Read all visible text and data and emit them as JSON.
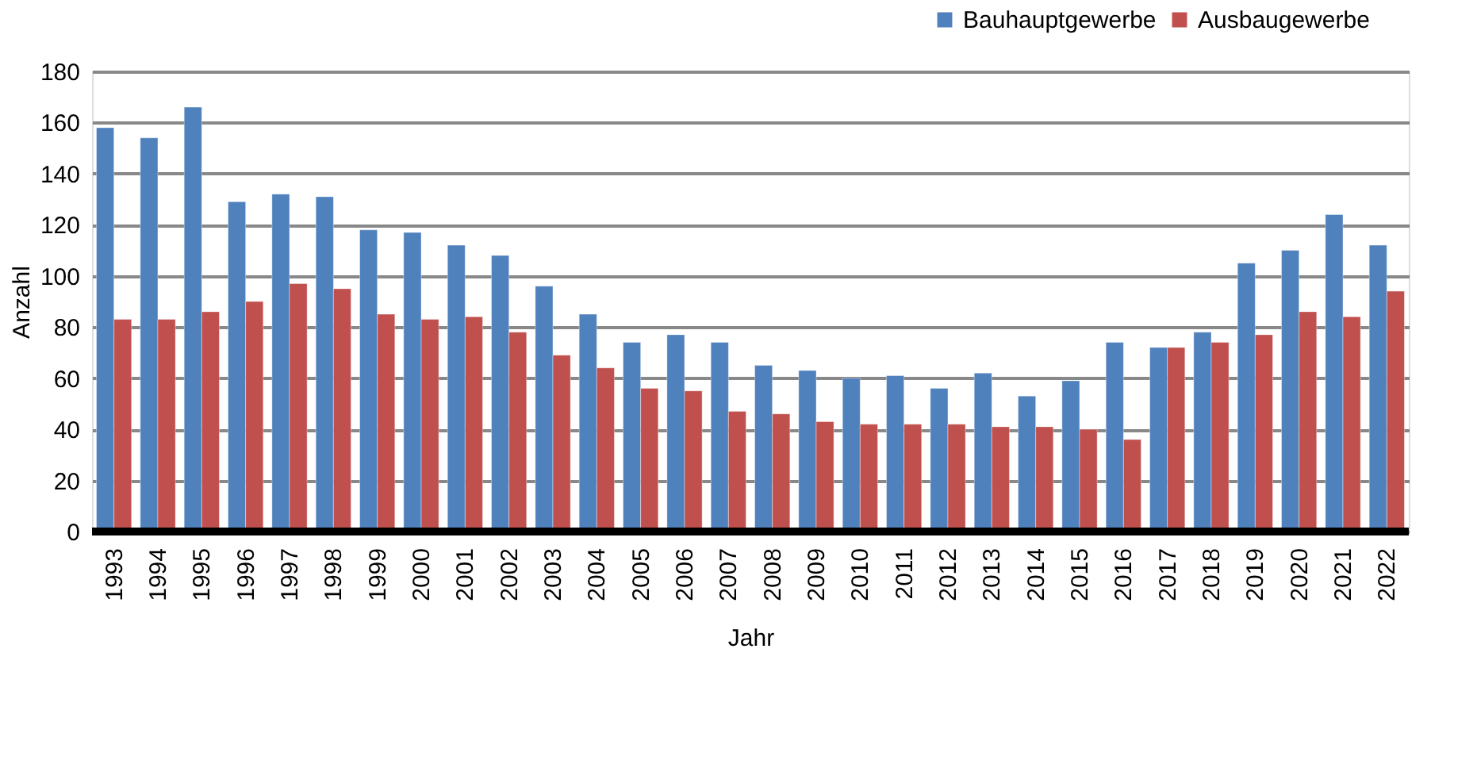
{
  "chart_data": {
    "type": "bar",
    "xlabel": "Jahr",
    "ylabel": "Anzahl",
    "categories": [
      "1993",
      "1994",
      "1995",
      "1996",
      "1997",
      "1998",
      "1999",
      "2000",
      "2001",
      "2002",
      "2003",
      "2004",
      "2005",
      "2006",
      "2007",
      "2008",
      "2009",
      "2010",
      "2011",
      "2012",
      "2013",
      "2014",
      "2015",
      "2016",
      "2017",
      "2018",
      "2019",
      "2020",
      "2021",
      "2022"
    ],
    "series": [
      {
        "name": "Bauhauptgewerbe",
        "color": "#4f81bd",
        "values": [
          158,
          154,
          166,
          129,
          132,
          131,
          118,
          117,
          112,
          108,
          96,
          85,
          74,
          77,
          74,
          65,
          63,
          60,
          61,
          56,
          62,
          53,
          59,
          74,
          72,
          78,
          105,
          110,
          124,
          112
        ]
      },
      {
        "name": "Ausbaugewerbe",
        "color": "#c0504d",
        "values": [
          83,
          83,
          86,
          90,
          97,
          95,
          85,
          83,
          84,
          78,
          69,
          64,
          56,
          55,
          47,
          46,
          43,
          42,
          42,
          42,
          41,
          41,
          40,
          36,
          72,
          74,
          77,
          86,
          84,
          94
        ]
      }
    ],
    "ylim": [
      0,
      180
    ],
    "yticks": [
      0,
      20,
      40,
      60,
      80,
      100,
      120,
      140,
      160,
      180
    ],
    "grid": "y",
    "legend": "top right"
  }
}
